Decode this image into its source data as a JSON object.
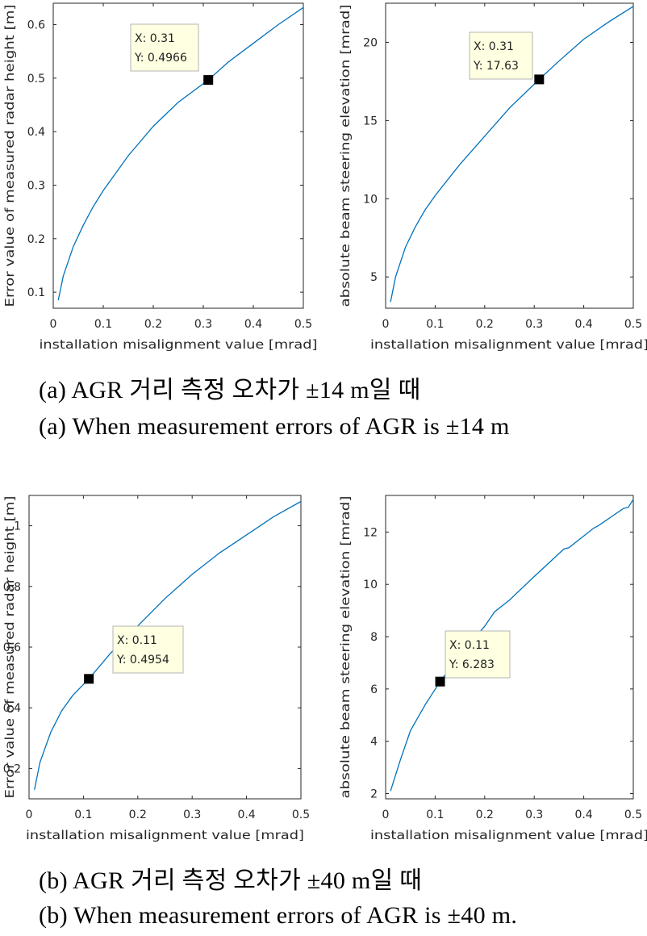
{
  "captions": {
    "a_korean": "(a) AGR 거리 측정 오차가 ±14 m일 때",
    "a_english": "(a) When measurement errors of AGR is ±14 m",
    "b_korean": "(b) AGR 거리 측정 오차가 ±40 m일 때",
    "b_english": "(b) When measurement errors of AGR is ±40 m."
  },
  "colors": {
    "line": "#0072bd",
    "axes": "#262626",
    "tip_bg": "#ffffe1",
    "tip_border": "#b5b5b5",
    "marker": "#000000"
  },
  "chart_data": [
    {
      "id": "a-left",
      "type": "line",
      "xlabel": "installation misalignment value [mrad]",
      "ylabel": "Error value of measured radar height [m]",
      "xlim": [
        0,
        0.5
      ],
      "ylim": [
        0.07,
        0.64
      ],
      "xticks": [
        0,
        0.1,
        0.2,
        0.3,
        0.4,
        0.5
      ],
      "xtick_labels": [
        "0",
        "0.1",
        "0.2",
        "0.3",
        "0.4",
        "0.5"
      ],
      "yticks": [
        0.1,
        0.2,
        0.3,
        0.4,
        0.5,
        0.6
      ],
      "ytick_labels": [
        "0.1",
        "0.2",
        "0.3",
        "0.4",
        "0.5",
        "0.6"
      ],
      "series": [
        {
          "x": [
            0.01,
            0.02,
            0.04,
            0.06,
            0.08,
            0.1,
            0.15,
            0.2,
            0.25,
            0.31,
            0.35,
            0.4,
            0.45,
            0.5
          ],
          "y": [
            0.085,
            0.13,
            0.185,
            0.225,
            0.26,
            0.29,
            0.355,
            0.41,
            0.455,
            0.4966,
            0.53,
            0.565,
            0.6,
            0.632
          ]
        }
      ],
      "datatip": {
        "x": 0.31,
        "y": 0.4966,
        "x_label": "X: 0.31",
        "y_label": "Y: 0.4966"
      }
    },
    {
      "id": "a-right",
      "type": "line",
      "xlabel": "installation misalignment value [mrad]",
      "ylabel": "absolute beam steering elevation [mrad]",
      "xlim": [
        0,
        0.5
      ],
      "ylim": [
        3,
        22.5
      ],
      "xticks": [
        0,
        0.1,
        0.2,
        0.3,
        0.4,
        0.5
      ],
      "xtick_labels": [
        "0",
        "0.1",
        "0.2",
        "0.3",
        "0.4",
        "0.5"
      ],
      "yticks": [
        5,
        10,
        15,
        20
      ],
      "ytick_labels": [
        "5",
        "10",
        "15",
        "20"
      ],
      "series": [
        {
          "x": [
            0.01,
            0.02,
            0.04,
            0.06,
            0.08,
            0.1,
            0.15,
            0.2,
            0.25,
            0.31,
            0.35,
            0.4,
            0.45,
            0.5
          ],
          "y": [
            3.4,
            5.0,
            6.9,
            8.2,
            9.3,
            10.2,
            12.2,
            14.0,
            15.8,
            17.63,
            18.8,
            20.2,
            21.3,
            22.3
          ]
        }
      ],
      "datatip": {
        "x": 0.31,
        "y": 17.63,
        "x_label": "X: 0.31",
        "y_label": "Y: 17.63"
      }
    },
    {
      "id": "b-left",
      "type": "line",
      "xlabel": "installation misalignment value [mrad]",
      "ylabel": "Error value of measured radar height [m]",
      "xlim": [
        0,
        0.5
      ],
      "ylim": [
        0.1,
        1.1
      ],
      "xticks": [
        0,
        0.1,
        0.2,
        0.3,
        0.4,
        0.5
      ],
      "xtick_labels": [
        "0",
        "0.1",
        "0.2",
        "0.3",
        "0.4",
        "0.5"
      ],
      "yticks": [
        0.2,
        0.4,
        0.6,
        0.8,
        1.0
      ],
      "ytick_labels": [
        "0.2",
        "0.4",
        "0.6",
        "0.8",
        "1"
      ],
      "series": [
        {
          "x": [
            0.01,
            0.02,
            0.04,
            0.06,
            0.08,
            0.11,
            0.15,
            0.2,
            0.25,
            0.3,
            0.35,
            0.4,
            0.45,
            0.5
          ],
          "y": [
            0.13,
            0.22,
            0.32,
            0.39,
            0.44,
            0.4954,
            0.58,
            0.67,
            0.76,
            0.84,
            0.91,
            0.97,
            1.03,
            1.08
          ]
        }
      ],
      "datatip": {
        "x": 0.11,
        "y": 0.4954,
        "x_label": "X: 0.11",
        "y_label": "Y: 0.4954"
      }
    },
    {
      "id": "b-right",
      "type": "line",
      "xlabel": "installation misalignment value [mrad]",
      "ylabel": "absolute beam steering elevation [mrad]",
      "xlim": [
        0,
        0.5
      ],
      "ylim": [
        1.8,
        13.4
      ],
      "xticks": [
        0,
        0.1,
        0.2,
        0.3,
        0.4,
        0.5
      ],
      "xtick_labels": [
        "0",
        "0.1",
        "0.2",
        "0.3",
        "0.4",
        "0.5"
      ],
      "yticks": [
        2,
        4,
        6,
        8,
        10,
        12
      ],
      "ytick_labels": [
        "2",
        "4",
        "6",
        "8",
        "10",
        "12"
      ],
      "series": [
        {
          "x": [
            0.01,
            0.03,
            0.05,
            0.08,
            0.11,
            0.15,
            0.2,
            0.22,
            0.25,
            0.3,
            0.36,
            0.37,
            0.42,
            0.43,
            0.48,
            0.49,
            0.5
          ],
          "y": [
            2.1,
            3.3,
            4.4,
            5.4,
            6.283,
            7.3,
            8.4,
            8.95,
            9.4,
            10.3,
            11.35,
            11.4,
            12.15,
            12.25,
            12.9,
            12.95,
            13.25
          ]
        }
      ],
      "datatip": {
        "x": 0.11,
        "y": 6.283,
        "x_label": "X: 0.11",
        "y_label": "Y: 6.283"
      }
    }
  ]
}
